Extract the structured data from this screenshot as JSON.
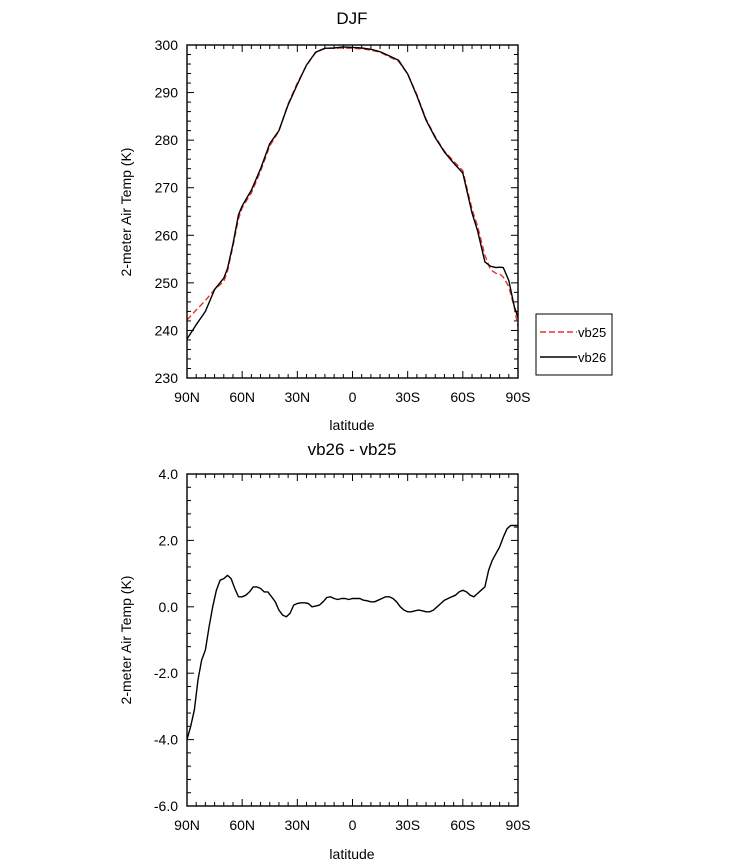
{
  "chart_data": [
    {
      "type": "line",
      "title": "DJF",
      "xlabel": "latitude",
      "ylabel": "2-meter Air Temp (K)",
      "x_ticks": [
        "90N",
        "60N",
        "30N",
        "0",
        "30S",
        "60S",
        "90S"
      ],
      "y_ticks": [
        "230",
        "240",
        "250",
        "260",
        "270",
        "280",
        "290",
        "300"
      ],
      "xlim": [
        90,
        -90
      ],
      "ylim": [
        230,
        300
      ],
      "legend": {
        "placement": "right",
        "entries": [
          "vb25",
          "vb26"
        ]
      },
      "series": [
        {
          "name": "vb25",
          "color": "#e8322e",
          "dash": "dashed",
          "x": [
            90,
            85,
            80,
            75,
            70,
            68,
            65,
            62,
            60,
            55,
            50,
            45,
            40,
            35,
            30,
            25,
            20,
            15,
            10,
            5,
            0,
            -5,
            -10,
            -15,
            -20,
            -25,
            -30,
            -35,
            -40,
            -45,
            -50,
            -55,
            -60,
            -65,
            -68,
            -70,
            -72,
            -75,
            -78,
            -80,
            -82,
            -85,
            -88,
            -90
          ],
          "y": [
            242.2,
            244.3,
            246.3,
            248.6,
            250.3,
            252.5,
            257.8,
            263.5,
            265.8,
            268.9,
            273.5,
            278.8,
            281.9,
            287.6,
            292.0,
            295.7,
            298.4,
            299.3,
            299.3,
            299.4,
            299.3,
            299.2,
            298.9,
            298.5,
            297.5,
            296.6,
            293.9,
            289.5,
            284.4,
            280.7,
            277.7,
            275.6,
            273.6,
            265.5,
            262.0,
            258.9,
            255.8,
            252.8,
            252.0,
            251.9,
            251.2,
            249.2,
            244.8,
            240.8
          ]
        },
        {
          "name": "vb26",
          "color": "#000000",
          "dash": "solid",
          "x": [
            90,
            85,
            80,
            75,
            70,
            68,
            65,
            62,
            60,
            55,
            50,
            45,
            40,
            35,
            30,
            25,
            20,
            15,
            10,
            5,
            0,
            -5,
            -10,
            -15,
            -20,
            -25,
            -30,
            -35,
            -40,
            -45,
            -50,
            -55,
            -60,
            -65,
            -68,
            -70,
            -72,
            -75,
            -78,
            -80,
            -82,
            -85,
            -88,
            -90
          ],
          "y": [
            238.2,
            241.2,
            244.0,
            248.6,
            251.0,
            253.0,
            258.2,
            264.3,
            266.2,
            269.5,
            274.0,
            279.3,
            282.0,
            287.4,
            291.7,
            295.8,
            298.5,
            299.3,
            299.4,
            299.6,
            299.5,
            299.4,
            299.1,
            298.6,
            297.7,
            296.8,
            293.9,
            289.3,
            284.2,
            280.5,
            277.5,
            275.2,
            273.1,
            264.7,
            261.0,
            257.7,
            254.4,
            253.5,
            253.2,
            253.3,
            253.2,
            250.5,
            245.0,
            242.7
          ]
        }
      ]
    },
    {
      "type": "line",
      "title": "vb26 - vb25",
      "xlabel": "latitude",
      "ylabel": "2-meter Air Temp (K)",
      "x_ticks": [
        "90N",
        "60N",
        "30N",
        "0",
        "30S",
        "60S",
        "90S"
      ],
      "y_ticks": [
        "-6.0",
        "-4.0",
        "-2.0",
        "0.0",
        "2.0",
        "4.0"
      ],
      "xlim": [
        90,
        -90
      ],
      "ylim": [
        -6,
        4
      ],
      "series": [
        {
          "name": "",
          "color": "#000000",
          "dash": "solid",
          "x": [
            90,
            88,
            86,
            84,
            82,
            80,
            78,
            76,
            74,
            72,
            70,
            68,
            66,
            64,
            62,
            60,
            58,
            56,
            54,
            52,
            50,
            48,
            46,
            44,
            42,
            40,
            38,
            36,
            34,
            32,
            30,
            28,
            26,
            24,
            22,
            20,
            18,
            16,
            14,
            12,
            10,
            8,
            6,
            4,
            2,
            0,
            -2,
            -4,
            -6,
            -8,
            -10,
            -12,
            -14,
            -16,
            -18,
            -20,
            -22,
            -24,
            -26,
            -28,
            -30,
            -32,
            -34,
            -36,
            -38,
            -40,
            -42,
            -44,
            -46,
            -48,
            -50,
            -52,
            -54,
            -56,
            -58,
            -60,
            -62,
            -64,
            -66,
            -68,
            -70,
            -72,
            -74,
            -76,
            -78,
            -80,
            -82,
            -84,
            -86,
            -88,
            -90
          ],
          "y": [
            -4.0,
            -3.6,
            -3.1,
            -2.2,
            -1.6,
            -1.3,
            -0.6,
            0.0,
            0.5,
            0.8,
            0.85,
            0.95,
            0.85,
            0.55,
            0.3,
            0.3,
            0.35,
            0.45,
            0.6,
            0.6,
            0.55,
            0.45,
            0.45,
            0.3,
            0.15,
            -0.1,
            -0.25,
            -0.3,
            -0.2,
            0.05,
            0.1,
            0.12,
            0.12,
            0.1,
            0.0,
            0.02,
            0.05,
            0.15,
            0.28,
            0.3,
            0.25,
            0.22,
            0.25,
            0.25,
            0.22,
            0.25,
            0.25,
            0.25,
            0.2,
            0.18,
            0.15,
            0.15,
            0.2,
            0.25,
            0.3,
            0.3,
            0.25,
            0.15,
            0.0,
            -0.1,
            -0.15,
            -0.15,
            -0.12,
            -0.1,
            -0.12,
            -0.15,
            -0.15,
            -0.1,
            0.0,
            0.1,
            0.2,
            0.25,
            0.3,
            0.35,
            0.45,
            0.5,
            0.45,
            0.35,
            0.3,
            0.4,
            0.5,
            0.6,
            1.1,
            1.4,
            1.6,
            1.8,
            2.1,
            2.35,
            2.45,
            2.45,
            2.45
          ]
        }
      ]
    }
  ]
}
